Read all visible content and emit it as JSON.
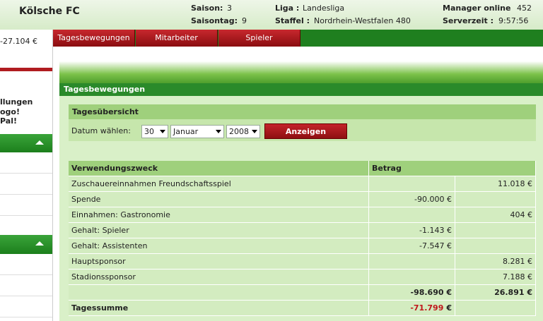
{
  "header": {
    "club": "Kölsche FC",
    "season_label": "Saison:",
    "season": "3",
    "matchday_label": "Saisontag:",
    "matchday": "9",
    "league_label": "Liga :",
    "league": "Landesliga",
    "division_label": "Staffel :",
    "division": "Nordrhein-Westfalen 480",
    "managers_label": "Manager online",
    "managers": "452",
    "time_label": "Serverzeit :",
    "time": "9:57:56"
  },
  "sidebar": {
    "balance": "-27.104 €",
    "lines": [
      "llungen",
      "ogo!",
      "Pal!"
    ]
  },
  "tabs": [
    "Tagesbewegungen",
    "Mitarbeiter",
    "Spieler"
  ],
  "section_title": "Tagesbewegungen",
  "overview": {
    "title": "Tagesübersicht",
    "date_label": "Datum wählen:",
    "day": "30",
    "month": "Januar",
    "year": "2008",
    "button": "Anzeigen"
  },
  "table": {
    "headers": [
      "Verwendungszweck",
      "Betrag"
    ],
    "rows": [
      {
        "label": "Zuschauereinnahmen Freundschaftsspiel",
        "income": "11.018 €"
      },
      {
        "label": "Spende",
        "expense": "-90.000 €"
      },
      {
        "label": "Einnahmen: Gastronomie",
        "income": "404 €"
      },
      {
        "label": "Gehalt: Spieler",
        "expense": "-1.143 €"
      },
      {
        "label": "Gehalt: Assistenten",
        "expense": "-7.547 €"
      },
      {
        "label": "Hauptsponsor",
        "income": "8.281 €"
      },
      {
        "label": "Stadionssponsor",
        "income": "7.188 €"
      }
    ],
    "totals": {
      "expense": "-98.690 €",
      "income": "26.891 €"
    },
    "sum": {
      "label": "Tagessumme",
      "amount": "-71.799",
      "currency": "€"
    }
  }
}
